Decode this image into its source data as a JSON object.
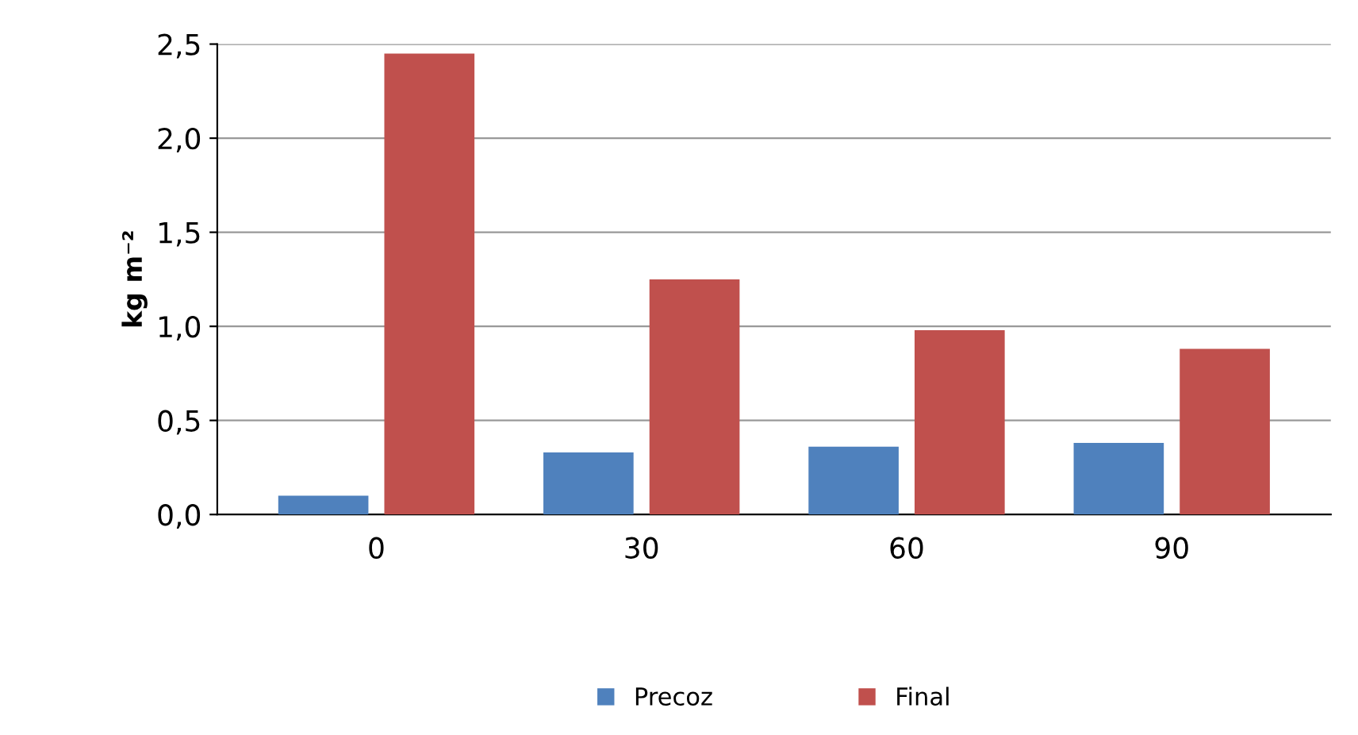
{
  "chart_data": {
    "type": "bar",
    "ylabel": "kg m⁻²",
    "categories": [
      "0",
      "30",
      "60",
      "90"
    ],
    "series": [
      {
        "name": "Precoz",
        "color": "#4f81bd",
        "values": [
          0.1,
          0.33,
          0.36,
          0.38
        ]
      },
      {
        "name": "Final",
        "color": "#c0504d",
        "values": [
          2.45,
          1.25,
          0.98,
          0.88
        ]
      }
    ],
    "ylim": [
      0,
      2.5
    ],
    "yticks": [
      {
        "value": 0,
        "label": "0,0"
      },
      {
        "value": 0.5,
        "label": "0,5"
      },
      {
        "value": 1.0,
        "label": "1,0"
      },
      {
        "value": 1.5,
        "label": "1,5"
      },
      {
        "value": 2.0,
        "label": "2,0"
      },
      {
        "value": 2.5,
        "label": "2,5"
      }
    ],
    "grid": "y",
    "legend": "bottom"
  }
}
